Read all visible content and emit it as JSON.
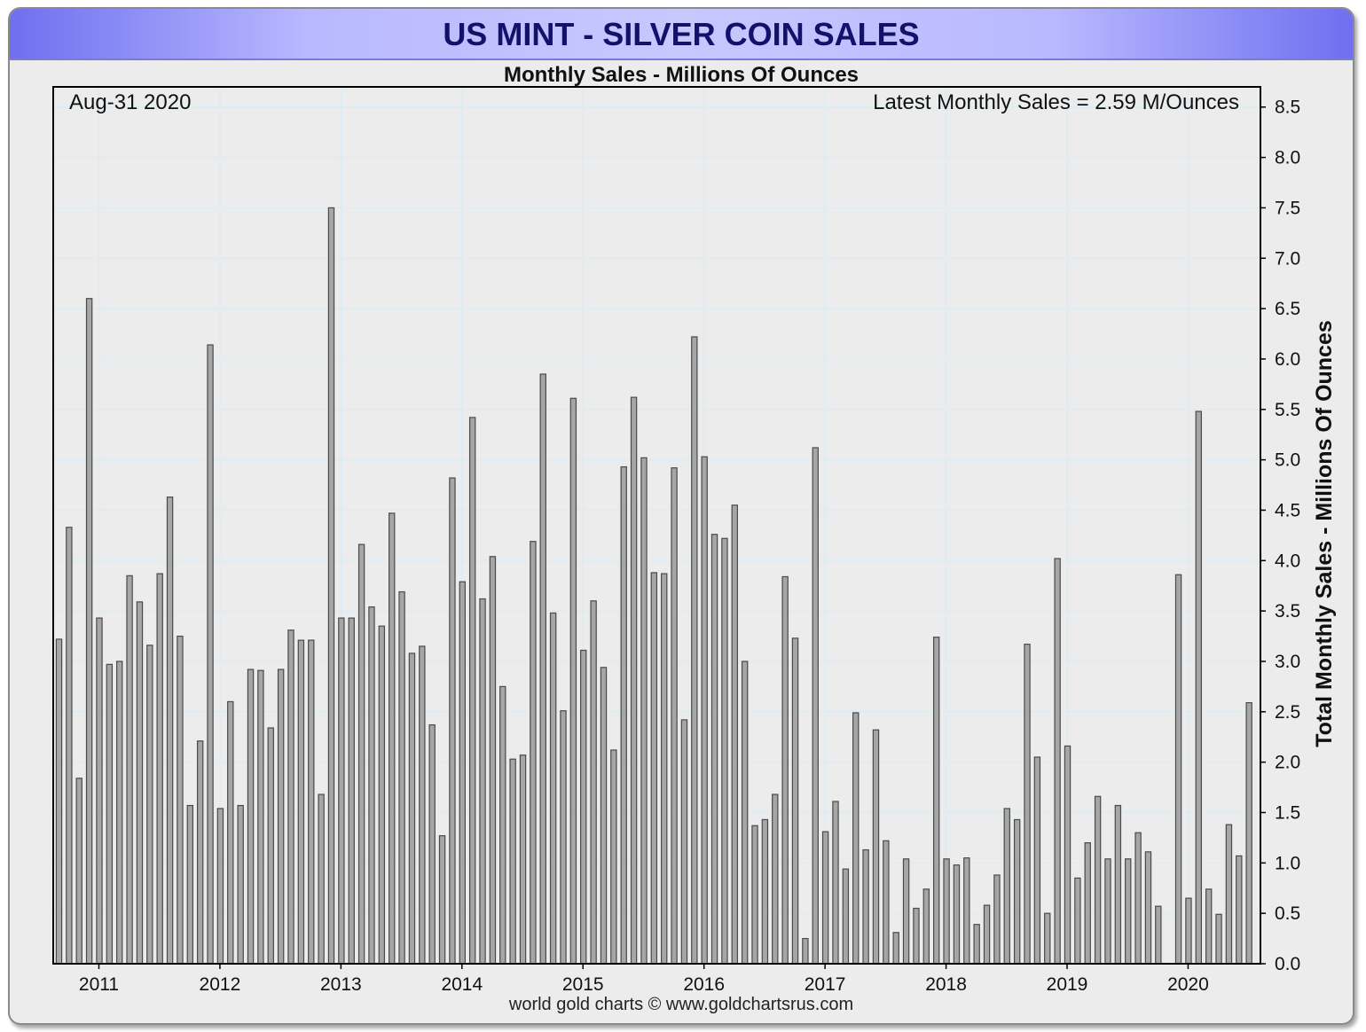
{
  "header": {
    "title": "US MINT - SILVER COIN SALES",
    "subtitle": "Monthly Sales - Millions Of Ounces"
  },
  "annotations": {
    "date": "Aug-31  2020",
    "latest": "Latest Monthly Sales = 2.59 M/Ounces"
  },
  "footer": {
    "credit": "world gold charts © www.goldchartsrus.com"
  },
  "colors": {
    "bar_fill": "#a6a6a6",
    "bar_stroke": "#4a4a4a",
    "grid": "#dcecf4",
    "title": "#12126a"
  },
  "chart_data": {
    "type": "bar",
    "title": "US MINT - SILVER COIN SALES",
    "subtitle": "Monthly Sales - Millions Of Ounces",
    "ylabel": "Total Monthly Sales - Millions Of Ounces",
    "ylim": [
      0,
      8.7
    ],
    "yticks": [
      "0.0",
      "0.5",
      "1.0",
      "1.5",
      "2.0",
      "2.5",
      "3.0",
      "3.5",
      "4.0",
      "4.5",
      "5.0",
      "5.5",
      "6.0",
      "6.5",
      "7.0",
      "7.5",
      "8.0",
      "8.5"
    ],
    "x_tick_labels": [
      "2011",
      "2012",
      "2013",
      "2014",
      "2015",
      "2016",
      "2017",
      "2018",
      "2019",
      "2020"
    ],
    "start_month": "2010-09",
    "end_month": "2020-08",
    "grid": true,
    "values": [
      3.22,
      4.33,
      1.84,
      6.6,
      3.43,
      2.97,
      3.0,
      3.85,
      3.59,
      3.16,
      3.87,
      4.63,
      3.25,
      1.57,
      2.21,
      6.14,
      1.54,
      2.6,
      1.57,
      2.92,
      2.91,
      2.34,
      2.92,
      3.31,
      3.21,
      3.21,
      1.68,
      7.5,
      3.43,
      3.43,
      4.16,
      3.54,
      3.35,
      4.47,
      3.69,
      3.08,
      3.15,
      2.37,
      1.27,
      4.82,
      3.79,
      5.42,
      3.62,
      4.04,
      2.75,
      2.03,
      2.07,
      4.19,
      5.85,
      3.48,
      2.51,
      5.61,
      3.11,
      3.6,
      2.94,
      2.12,
      4.93,
      5.62,
      5.02,
      3.88,
      3.87,
      4.92,
      2.42,
      6.22,
      5.03,
      4.26,
      4.22,
      4.55,
      3.0,
      1.37,
      1.43,
      1.68,
      3.84,
      3.23,
      0.25,
      5.12,
      1.31,
      1.61,
      0.94,
      2.49,
      1.13,
      2.32,
      1.22,
      0.31,
      1.04,
      0.55,
      0.74,
      3.24,
      1.04,
      0.98,
      1.05,
      0.39,
      0.58,
      0.88,
      1.54,
      1.43,
      3.17,
      2.05,
      0.5,
      4.02,
      2.16,
      0.85,
      1.2,
      1.66,
      1.04,
      1.57,
      1.04,
      1.3,
      1.11,
      0.57,
      0.0,
      3.86,
      0.65,
      5.48,
      0.74,
      0.49,
      1.38,
      1.07,
      2.59
    ]
  }
}
